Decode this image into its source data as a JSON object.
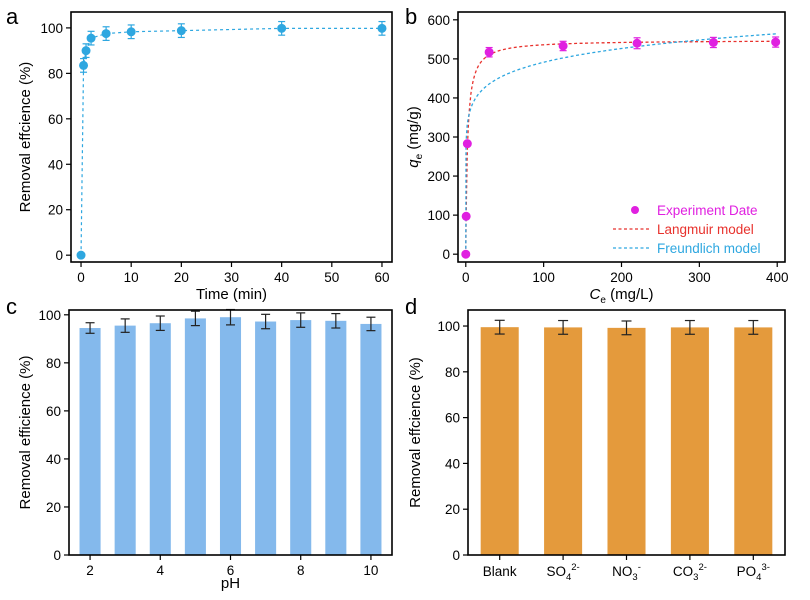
{
  "panels": {
    "a": "a",
    "b": "b",
    "c": "c",
    "d": "d"
  },
  "colors": {
    "a_series": "#2ea7e0",
    "b_points": "#e020e0",
    "b_langmuir": "#e8322d",
    "b_freundlich": "#2ea7e0",
    "c_bar": "#84b9ec",
    "d_bar": "#e49a3c",
    "error_bar": "#222222"
  },
  "chart_data": [
    {
      "panel": "a",
      "type": "scatter",
      "title": "",
      "xlabel": "Time (min)",
      "ylabel": "Removal effcience (%)",
      "xlim": [
        -2,
        62
      ],
      "ylim": [
        -3,
        107
      ],
      "xticks": [
        0,
        10,
        20,
        30,
        40,
        50,
        60
      ],
      "yticks": [
        0,
        20,
        40,
        60,
        80,
        100
      ],
      "x": [
        0,
        0.5,
        1,
        2,
        5,
        10,
        20,
        40,
        60
      ],
      "y": [
        0,
        83.5,
        90,
        95.5,
        97.5,
        98.3,
        98.8,
        99.8,
        99.8
      ],
      "error": [
        0,
        3,
        3,
        3,
        3,
        3,
        3,
        3,
        3
      ],
      "fit_line": "dashed"
    },
    {
      "panel": "b",
      "type": "scatter",
      "title": "",
      "xlabel_main": "C",
      "xlabel_sub": "e",
      "xlabel_rest": " (mg/L)",
      "ylabel_main": "q",
      "ylabel_sub": "e",
      "ylabel_rest": " (mg/g)",
      "xlim": [
        -10,
        410
      ],
      "ylim": [
        -20,
        620
      ],
      "xticks": [
        0,
        100,
        200,
        300,
        400
      ],
      "yticks": [
        0,
        100,
        200,
        300,
        400,
        500,
        600
      ],
      "legend_position": "bottom-right",
      "series": [
        {
          "name": "Experiment Date",
          "x": [
            0,
            0.5,
            2,
            30,
            125,
            220,
            318,
            398
          ],
          "y": [
            0,
            97,
            283,
            517,
            533,
            540,
            542,
            543
          ],
          "error": [
            0,
            0,
            0,
            12,
            12,
            14,
            13,
            13
          ]
        },
        {
          "name": "Langmuir model",
          "model": "langmuir",
          "qm": 548,
          "KL": 0.45
        },
        {
          "name": "Freundlich model",
          "model": "freundlich",
          "KF": 310,
          "n": 10
        }
      ]
    },
    {
      "panel": "c",
      "type": "bar",
      "title": "",
      "xlabel": "pH",
      "ylabel": "Removal efficience (%)",
      "xlim": [
        1.4,
        10.6
      ],
      "ylim": [
        0,
        102
      ],
      "xticks": [
        2,
        4,
        6,
        8,
        10
      ],
      "yticks": [
        0,
        20,
        40,
        60,
        80,
        100
      ],
      "x": [
        2,
        3,
        4,
        5,
        6,
        7,
        8,
        9,
        10
      ],
      "values": [
        94.5,
        95.5,
        96.5,
        98.5,
        99,
        97.2,
        97.8,
        97.5,
        96.2
      ],
      "error": [
        2.2,
        2.8,
        3,
        3,
        3.2,
        3,
        3,
        3,
        2.8
      ]
    },
    {
      "panel": "d",
      "type": "bar",
      "title": "",
      "xlabel": "",
      "ylabel": "Removal effcience (%)",
      "ylim": [
        0,
        107
      ],
      "yticks": [
        0,
        20,
        40,
        60,
        80,
        100
      ],
      "categories": [
        {
          "main": "Blank",
          "sub": "",
          "sup": ""
        },
        {
          "main": "SO",
          "sub": "4",
          "sup": "2-"
        },
        {
          "main": "NO",
          "sub": "3",
          "sup": "-"
        },
        {
          "main": "CO",
          "sub": "3",
          "sup": "2-"
        },
        {
          "main": "PO",
          "sub": "4",
          "sup": "3-"
        }
      ],
      "values": [
        99.5,
        99.4,
        99.2,
        99.4,
        99.4
      ],
      "error": [
        3,
        3,
        3,
        3,
        3
      ]
    }
  ]
}
